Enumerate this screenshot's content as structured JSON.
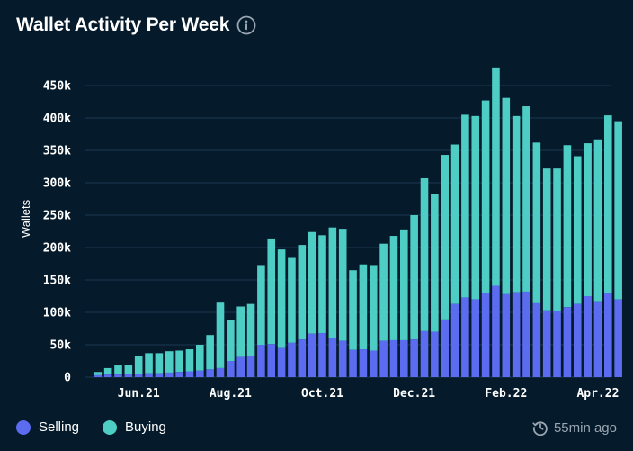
{
  "header": {
    "title": "Wallet Activity Per Week",
    "info_icon": "info-icon"
  },
  "legend": {
    "selling_label": "Selling",
    "buying_label": "Buying"
  },
  "footer": {
    "updated": "55min ago",
    "icon": "clock-icon"
  },
  "colors": {
    "background": "#051a2b",
    "selling": "#5b6cf0",
    "buying": "#4ecdc4",
    "grid": "#1c3850"
  },
  "chart_data": {
    "type": "bar",
    "stacked": true,
    "title": "Wallet Activity Per Week",
    "ylabel": "Wallets",
    "ylim": [
      0,
      480000
    ],
    "yticks": [
      0,
      50000,
      100000,
      150000,
      200000,
      250000,
      300000,
      350000,
      400000,
      450000
    ],
    "ytick_labels": [
      "0",
      "50k",
      "100k",
      "150k",
      "200k",
      "250k",
      "300k",
      "350k",
      "400k",
      "450k"
    ],
    "xtick_labels": [
      {
        "label": "Jun.21",
        "index": 4
      },
      {
        "label": "Aug.21",
        "index": 13
      },
      {
        "label": "Oct.21",
        "index": 22
      },
      {
        "label": "Dec.21",
        "index": 31
      },
      {
        "label": "Feb.22",
        "index": 40
      },
      {
        "label": "Apr.22",
        "index": 49
      }
    ],
    "grid": true,
    "legend_position": "bottom-left",
    "series": [
      {
        "name": "Selling",
        "values": [
          3000,
          4000,
          4000,
          5000,
          5000,
          6000,
          6000,
          7000,
          8000,
          9000,
          10000,
          12000,
          14000,
          25000,
          31000,
          33000,
          50000,
          51000,
          45000,
          53000,
          58000,
          67000,
          68000,
          60000,
          56000,
          42000,
          43000,
          41000,
          56000,
          57000,
          57000,
          58000,
          71000,
          70000,
          89000,
          113000,
          123000,
          120000,
          130000,
          141000,
          128000,
          131000,
          132000,
          114000,
          103000,
          102000,
          108000,
          113000,
          125000,
          117000,
          130000,
          120000
        ]
      },
      {
        "name": "Buying",
        "values": [
          5000,
          10000,
          14000,
          14000,
          28000,
          31000,
          31000,
          33000,
          33000,
          34000,
          40000,
          53000,
          101000,
          63000,
          78000,
          80000,
          123000,
          163000,
          152000,
          131000,
          146000,
          157000,
          151000,
          171000,
          173000,
          123000,
          131000,
          132000,
          150000,
          161000,
          171000,
          192000,
          236000,
          212000,
          254000,
          246000,
          282000,
          283000,
          297000,
          337000,
          303000,
          272000,
          286000,
          248000,
          219000,
          220000,
          250000,
          228000,
          236000,
          250000,
          274000,
          275000
        ]
      }
    ]
  }
}
